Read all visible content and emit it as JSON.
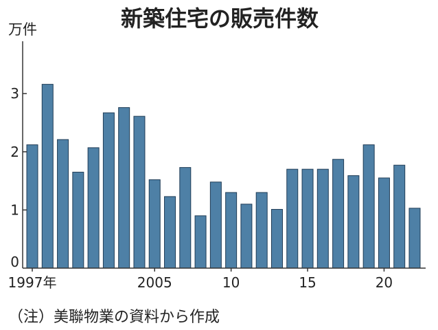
{
  "chart_data": {
    "type": "bar",
    "title": "新築住宅の販売件数",
    "ylabel": "万件",
    "xlabel": "",
    "x": [
      1997,
      1998,
      1999,
      2000,
      2001,
      2002,
      2003,
      2004,
      2005,
      2006,
      2007,
      2008,
      2009,
      2010,
      2011,
      2012,
      2013,
      2014,
      2015,
      2016,
      2017,
      2018,
      2019,
      2020,
      2021,
      2022
    ],
    "values": [
      2.12,
      3.16,
      2.21,
      1.65,
      2.07,
      2.67,
      2.76,
      2.61,
      1.52,
      1.23,
      1.73,
      0.9,
      1.48,
      1.3,
      1.1,
      1.3,
      1.01,
      1.7,
      1.7,
      1.7,
      1.87,
      1.59,
      2.12,
      1.55,
      1.77,
      1.03
    ],
    "ylim": [
      0,
      3.9
    ],
    "yticks": [
      0,
      1,
      2,
      3
    ],
    "xticks": [
      {
        "x": 1997,
        "label": "1997年"
      },
      {
        "x": 2005,
        "label": "2005"
      },
      {
        "x": 2010,
        "label": "10"
      },
      {
        "x": 2015,
        "label": "15"
      },
      {
        "x": 2020,
        "label": "20"
      }
    ],
    "grid": false
  },
  "source_note": "（注）美聯物業の資料から作成",
  "colors": {
    "bar_fill": "#4e80a6",
    "bar_stroke": "#1f3b55",
    "axis": "#333333",
    "text": "#222222"
  }
}
